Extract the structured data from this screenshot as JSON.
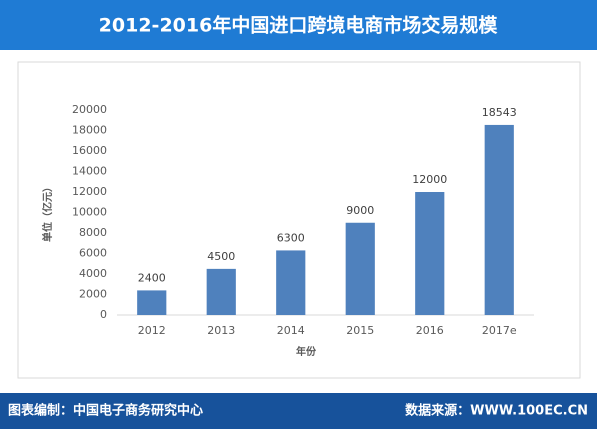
{
  "chart_data": {
    "type": "bar",
    "title": "2012-2016年中国进口跨境电商市场交易规模",
    "categories": [
      "2012",
      "2013",
      "2014",
      "2015",
      "2016",
      "2017e"
    ],
    "values": [
      2400,
      4500,
      6300,
      9000,
      12000,
      18543
    ],
    "color": "#4f81bd",
    "ylim": [
      0,
      20000
    ],
    "yticks": [
      0,
      2000,
      4000,
      6000,
      8000,
      10000,
      12000,
      14000,
      16000,
      18000,
      20000
    ],
    "grid": false,
    "x_label": "年份",
    "y_label": "单位（亿元）"
  },
  "footer": {
    "left": "图表编制：中国电子商务研究中心",
    "right": "数据来源：WWW.100EC.CN"
  }
}
